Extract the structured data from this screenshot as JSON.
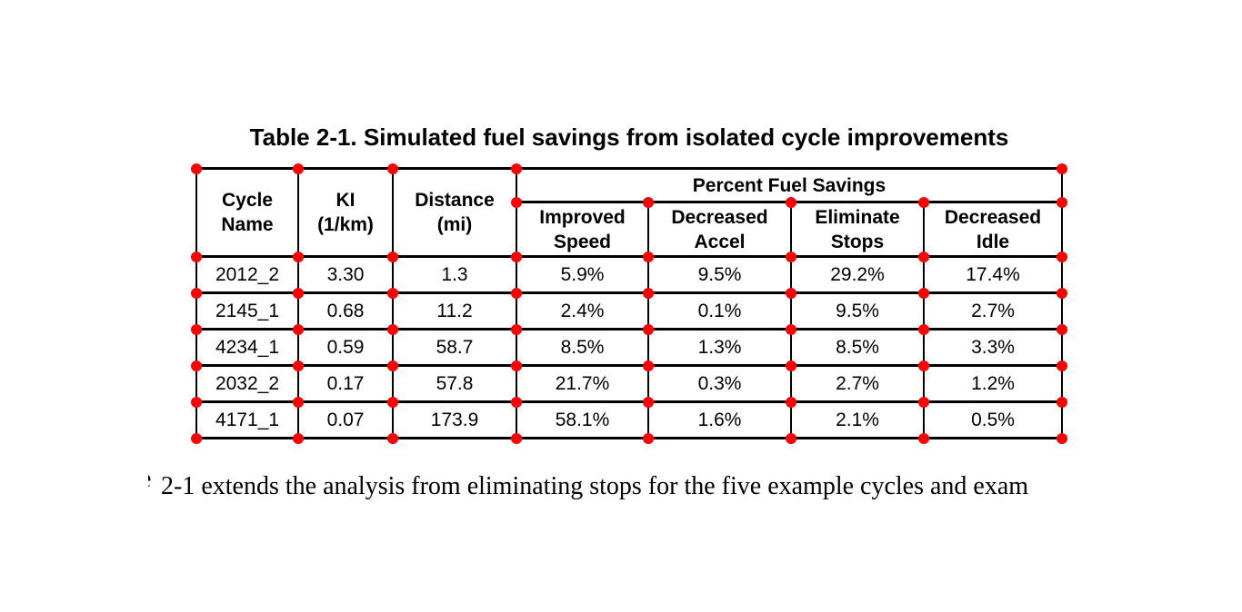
{
  "caption": "Table 2-1. Simulated fuel savings from isolated cycle improvements",
  "table": {
    "column_headers": [
      "Cycle\nName",
      "KI\n(1/km)",
      "Distance\n(mi)"
    ],
    "group_header": "Percent Fuel Savings",
    "sub_headers": [
      "Improved\nSpeed",
      "Decreased\nAccel",
      "Eliminate\nStops",
      "Decreased\nIdle"
    ],
    "rows": [
      {
        "cycle_name": "2012_2",
        "ki": "3.30",
        "distance_mi": "1.3",
        "improved_speed": "5.9%",
        "decreased_accel": "9.5%",
        "eliminate_stops": "29.2%",
        "decreased_idle": "17.4%"
      },
      {
        "cycle_name": "2145_1",
        "ki": "0.68",
        "distance_mi": "11.2",
        "improved_speed": "2.4%",
        "decreased_accel": "0.1%",
        "eliminate_stops": "9.5%",
        "decreased_idle": "2.7%"
      },
      {
        "cycle_name": "4234_1",
        "ki": "0.59",
        "distance_mi": "58.7",
        "improved_speed": "8.5%",
        "decreased_accel": "1.3%",
        "eliminate_stops": "8.5%",
        "decreased_idle": "3.3%"
      },
      {
        "cycle_name": "2032_2",
        "ki": "0.17",
        "distance_mi": "57.8",
        "improved_speed": "21.7%",
        "decreased_accel": "0.3%",
        "eliminate_stops": "2.7%",
        "decreased_idle": "1.2%"
      },
      {
        "cycle_name": "4171_1",
        "ki": "0.07",
        "distance_mi": "173.9",
        "improved_speed": "58.1%",
        "decreased_accel": "1.6%",
        "eliminate_stops": "2.1%",
        "decreased_idle": "0.5%"
      }
    ]
  },
  "body_text": {
    "clipped_left_fragment": "e",
    "text": "2-1 extends the analysis from eliminating stops for the five example cycles and exam"
  },
  "annotations": {
    "corner_dot_color": "#ff0000"
  }
}
